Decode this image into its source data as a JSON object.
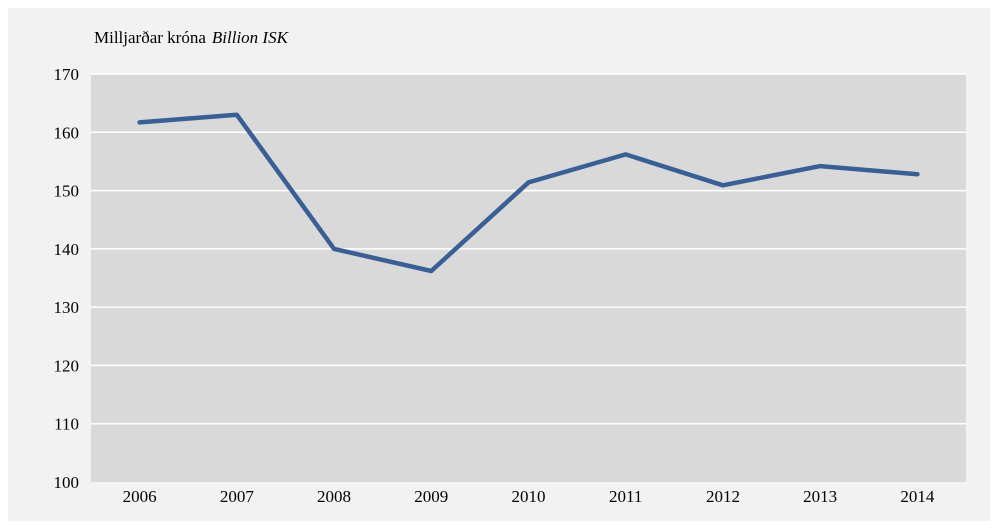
{
  "chart_data": {
    "type": "line",
    "title": "",
    "ylabel_is": "Milljarðar króna",
    "ylabel_en": "Billion ISK",
    "xlabel": "",
    "categories": [
      "2006",
      "2007",
      "2008",
      "2009",
      "2010",
      "2011",
      "2012",
      "2013",
      "2014"
    ],
    "series": [
      {
        "values": [
          161.7,
          163.0,
          140.0,
          136.2,
          151.4,
          156.2,
          150.9,
          154.2,
          152.8
        ],
        "color": "#3a5f95"
      }
    ],
    "ylim": [
      100,
      170
    ],
    "yticks": [
      100,
      110,
      120,
      130,
      140,
      150,
      160,
      170
    ],
    "grid": true,
    "legend": "none",
    "colors": {
      "frame": "#f2f2f2",
      "plot_background": "#d9d9d9",
      "gridline": "#ffffff"
    }
  }
}
